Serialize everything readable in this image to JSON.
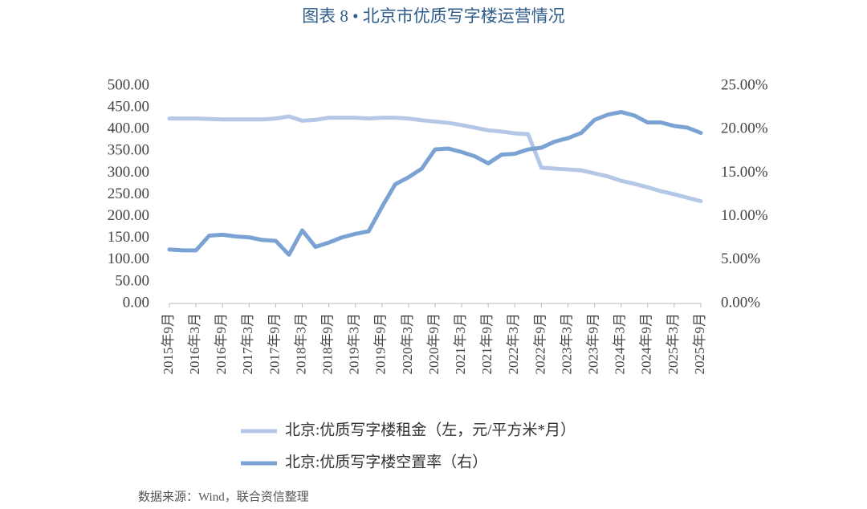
{
  "chart_data": {
    "type": "line",
    "title": "图表 8 • 北京市优质写字楼运营情况",
    "source": "数据来源：Wind，联合资信整理",
    "categories": [
      "2015年9月",
      null,
      "2016年3月",
      null,
      "2016年9月",
      null,
      "2017年3月",
      null,
      "2017年9月",
      null,
      "2018年3月",
      null,
      "2018年9月",
      null,
      "2019年3月",
      null,
      "2019年9月",
      null,
      "2020年3月",
      null,
      "2020年9月",
      null,
      "2021年3月",
      null,
      "2021年9月",
      null,
      "2022年3月",
      null,
      "2022年9月",
      null,
      "2023年3月",
      null,
      "2023年9月",
      null,
      "2024年3月",
      null,
      "2024年9月",
      null,
      "2025年3月",
      null,
      "2025年9月"
    ],
    "series": [
      {
        "name": "北京:优质写字楼租金（左，元/平方米*月）",
        "color": "#b4c7e7",
        "axis": "y",
        "values": [
          425,
          425,
          425,
          424,
          423,
          423,
          423,
          423,
          425,
          430,
          420,
          422,
          427,
          427,
          427,
          425,
          427,
          427,
          425,
          421,
          418,
          415,
          410,
          404,
          398,
          395,
          391,
          389,
          312,
          310,
          308,
          306,
          299,
          292,
          282,
          275,
          267,
          258,
          251,
          243,
          235
        ]
      },
      {
        "name": "北京:优质写字楼空置率（右）",
        "color": "#7aa3d3",
        "axis": "y2",
        "values": [
          6.2,
          6.1,
          6.1,
          7.8,
          7.9,
          7.7,
          7.6,
          7.3,
          7.2,
          5.6,
          8.4,
          6.5,
          7.0,
          7.6,
          8.0,
          8.3,
          11.1,
          13.7,
          14.5,
          15.5,
          17.7,
          17.8,
          17.4,
          16.9,
          16.1,
          17.1,
          17.2,
          17.7,
          17.9,
          18.6,
          19.0,
          19.6,
          21.1,
          21.7,
          22.0,
          21.6,
          20.8,
          20.8,
          20.4,
          20.2,
          19.6
        ]
      }
    ],
    "ylim": [
      0,
      500
    ],
    "yticks": [
      {
        "value": 0,
        "label": "0.00"
      },
      {
        "value": 50,
        "label": "50.00"
      },
      {
        "value": 100,
        "label": "100.00"
      },
      {
        "value": 150,
        "label": "150.00"
      },
      {
        "value": 200,
        "label": "200.00"
      },
      {
        "value": 250,
        "label": "250.00"
      },
      {
        "value": 300,
        "label": "300.00"
      },
      {
        "value": 350,
        "label": "350.00"
      },
      {
        "value": 400,
        "label": "400.00"
      },
      {
        "value": 450,
        "label": "450.00"
      },
      {
        "value": 500,
        "label": "500.00"
      }
    ],
    "y2lim": [
      0,
      25
    ],
    "y2ticks": [
      {
        "value": 0,
        "label": "0.00%"
      },
      {
        "value": 5,
        "label": "5.00%"
      },
      {
        "value": 10,
        "label": "10.00%"
      },
      {
        "value": 15,
        "label": "15.00%"
      },
      {
        "value": 20,
        "label": "20.00%"
      },
      {
        "value": 25,
        "label": "25.00%"
      }
    ],
    "grid": false,
    "legend": "bottom"
  }
}
